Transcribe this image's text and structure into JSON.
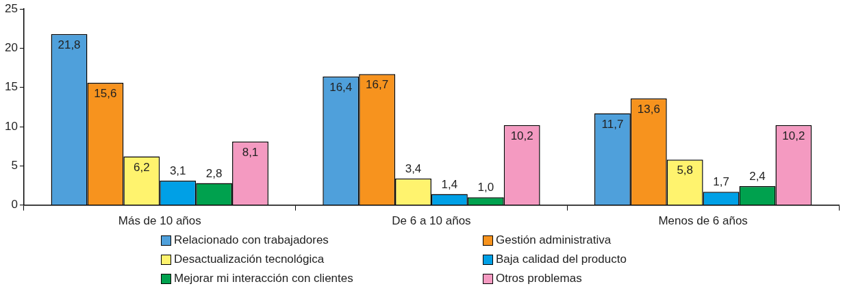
{
  "chart_data": {
    "type": "bar",
    "categories": [
      "Más de 10 años",
      "De 6 a 10 años",
      "Menos de 6 años"
    ],
    "series": [
      {
        "name": "Relacionado con trabajadores",
        "color": "#4fa0db",
        "values": [
          21.8,
          16.4,
          11.7
        ],
        "value_labels": [
          "21,8",
          "16,4",
          "11,7"
        ]
      },
      {
        "name": "Gestión administrativa",
        "color": "#f7931e",
        "values": [
          15.6,
          16.7,
          13.6
        ],
        "value_labels": [
          "15,6",
          "16,7",
          "13,6"
        ]
      },
      {
        "name": "Desactualización tecnológica",
        "color": "#fff36e",
        "values": [
          6.2,
          3.4,
          5.8
        ],
        "value_labels": [
          "6,2",
          "3,4",
          "5,8"
        ]
      },
      {
        "name": "Baja calidad del producto",
        "color": "#00a0e6",
        "values": [
          3.1,
          1.4,
          1.7
        ],
        "value_labels": [
          "3,1",
          "1,4",
          "1,7"
        ]
      },
      {
        "name": "Mejorar mi interacción con clientes",
        "color": "#00a14e",
        "values": [
          2.8,
          1.0,
          2.4
        ],
        "value_labels": [
          "2,8",
          "1,0",
          "2,4"
        ]
      },
      {
        "name": "Otros problemas",
        "color": "#f49ac1",
        "values": [
          8.1,
          10.2,
          10.2
        ],
        "value_labels": [
          "8,1",
          "10,2",
          "10,2"
        ]
      }
    ],
    "ylim": [
      0,
      25
    ],
    "yticks": [
      0,
      5,
      10,
      15,
      20,
      25
    ],
    "grid": false,
    "legend": "bottom"
  }
}
